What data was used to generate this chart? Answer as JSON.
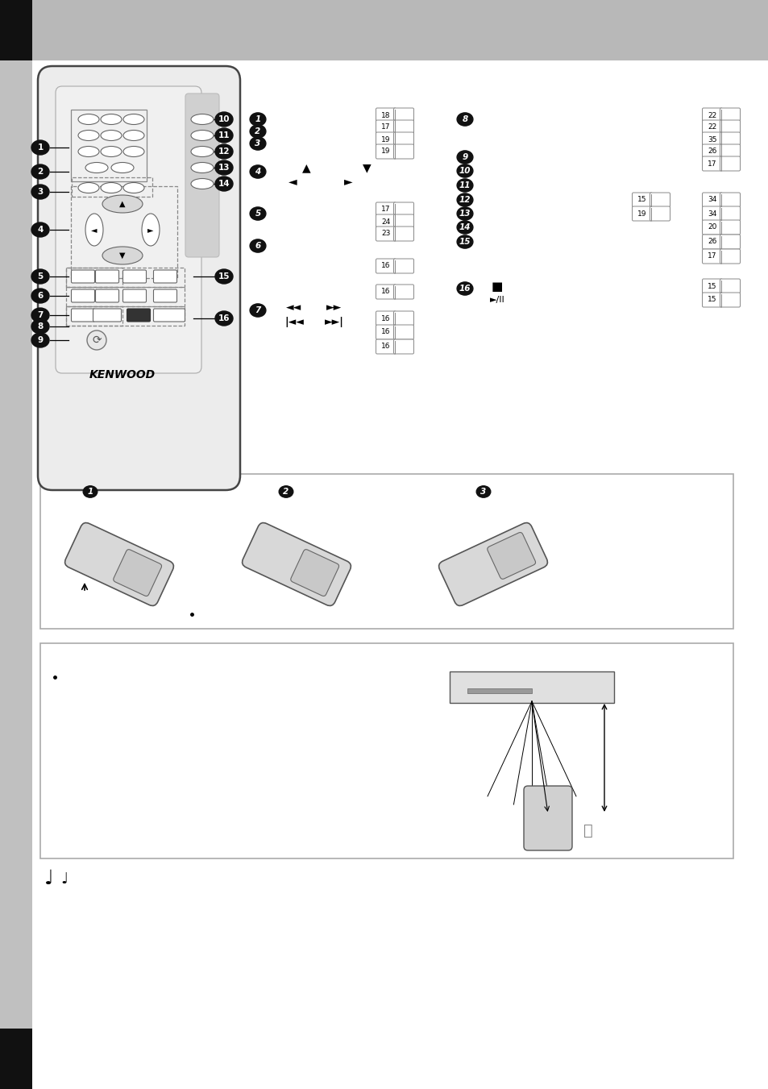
{
  "bg_color": "#ffffff",
  "header_bg": "#b8b8b8",
  "sidebar_bg": "#c0c0c0",
  "black_color": "#111111",
  "remote_body_color": "#ececec",
  "remote_border": "#444444",
  "btn_color": "#ffffff",
  "btn_border": "#666666",
  "dpad_center_color": "#d8d8d8",
  "grey_strip_color": "#d0d0d0",
  "num_circle_fill": "#111111",
  "num_circle_text": "#ffffff",
  "page_box_fill": "#ffffff",
  "page_box_border": "#888888",
  "panel_border": "#aaaaaa",
  "panel_fill": "#ffffff"
}
